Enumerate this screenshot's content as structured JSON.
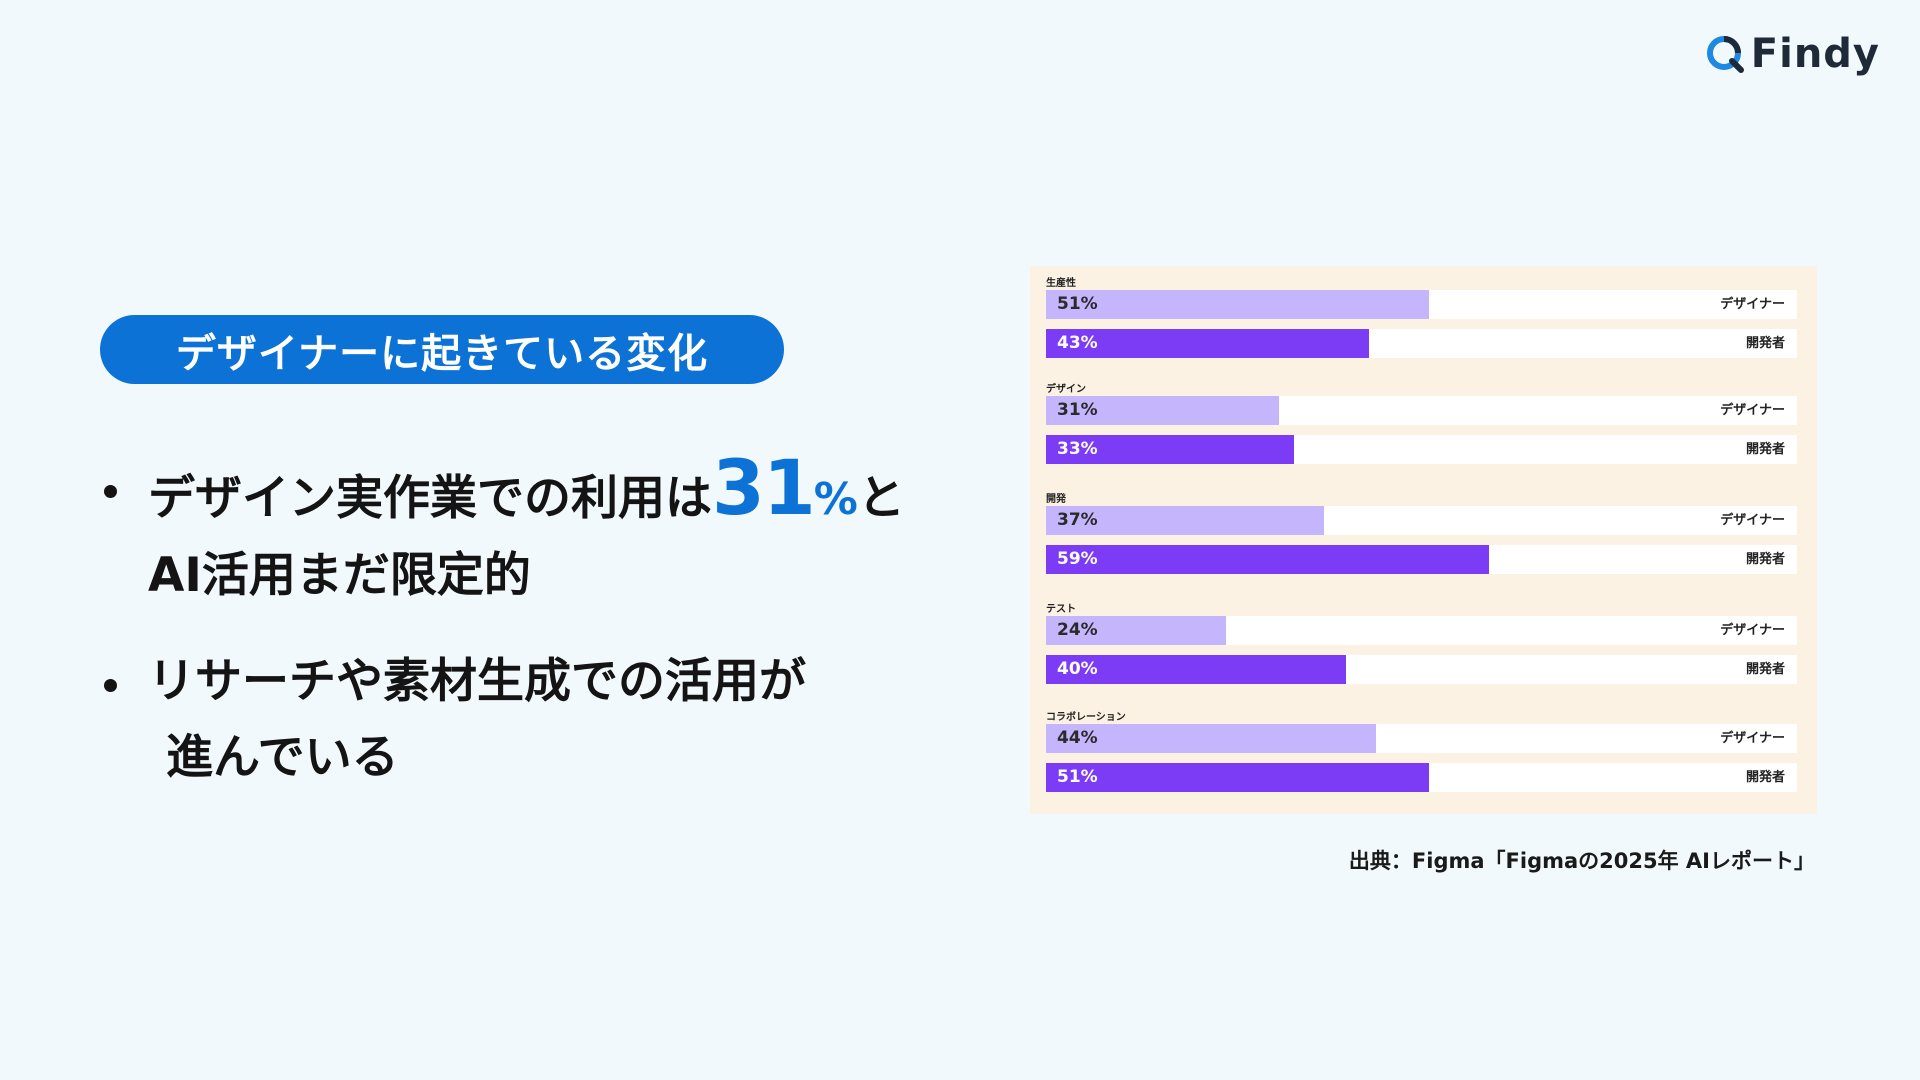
{
  "logo": {
    "text": "Findy",
    "icon": "findy-logo-icon"
  },
  "pill": {
    "label": "デザイナーに起きている変化"
  },
  "bullets": [
    {
      "prefix": "デザイン実作業での利用は",
      "number": "31",
      "percent": "%",
      "suffix": "と",
      "line2": "AI活用まだ限定的"
    },
    {
      "line1": "リサーチや素材生成での活用が",
      "line2": "進んでいる"
    }
  ],
  "colors": {
    "accent": "#0d72d6",
    "designer_bar": "#c4b5fd",
    "developer_bar": "#7c3cf6",
    "chart_bg": "#fcf2e4",
    "page_bg": "#f2f9fd"
  },
  "chart_data": {
    "type": "bar",
    "orientation": "horizontal",
    "categories": [
      "生産性",
      "デザイン",
      "開発",
      "テスト",
      "コラボレーション"
    ],
    "series": [
      {
        "name": "デザイナー",
        "values": [
          51,
          31,
          37,
          24,
          44
        ],
        "labels": [
          "51%",
          "31%",
          "37%",
          "24%",
          "44%"
        ]
      },
      {
        "name": "開発者",
        "values": [
          43,
          33,
          59,
          40,
          51
        ],
        "labels": [
          "43%",
          "33%",
          "59%",
          "40%",
          "51%"
        ]
      }
    ],
    "xlim": [
      0,
      100
    ],
    "grid": false,
    "legend": "inline-right"
  },
  "source": "出典：Figma「Figmaの2025年 AIレポート」"
}
